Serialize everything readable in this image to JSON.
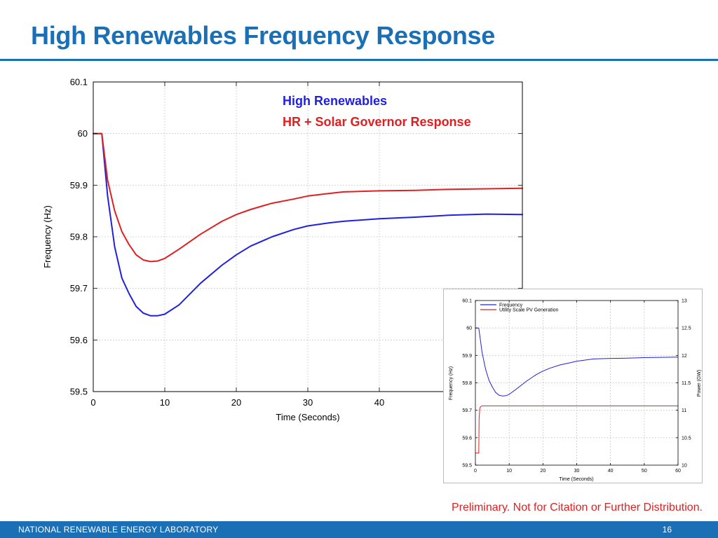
{
  "slide": {
    "title": "High Renewables Frequency Response",
    "disclaimer": "Preliminary.  Not for Citation or Further Distribution.",
    "footer_lab": "NATIONAL RENEWABLE ENERGY LABORATORY",
    "page_number": "16"
  },
  "colors": {
    "brand": "#1a6fb5",
    "series_blue": "#2020e0",
    "series_red": "#e02020",
    "grid": "#bbbbbb"
  },
  "chart_data": [
    {
      "type": "line",
      "title": "",
      "xlabel": "Time (Seconds)",
      "ylabel": "Frequency (Hz)",
      "xlim": [
        0,
        60
      ],
      "ylim": [
        59.5,
        60.1
      ],
      "xticks": [
        0,
        10,
        20,
        30,
        40
      ],
      "yticks": [
        59.5,
        59.6,
        59.7,
        59.8,
        59.9,
        60,
        60.1
      ],
      "ytick_labels": [
        "59.5",
        "59.6",
        "59.7",
        "59.8",
        "59.9",
        "60",
        "60.1"
      ],
      "grid": true,
      "legend_position": "top-right",
      "series": [
        {
          "name": "High Renewables",
          "color": "#2020e0",
          "x": [
            0,
            1.2,
            2,
            3,
            4,
            5,
            6,
            7,
            8,
            9,
            10,
            12,
            15,
            18,
            20,
            22,
            25,
            28,
            30,
            33,
            35,
            40,
            45,
            50,
            55,
            60
          ],
          "y": [
            60,
            60,
            59.88,
            59.78,
            59.72,
            59.69,
            59.665,
            59.652,
            59.647,
            59.647,
            59.65,
            59.668,
            59.71,
            59.745,
            59.765,
            59.782,
            59.8,
            59.814,
            59.821,
            59.827,
            59.83,
            59.835,
            59.838,
            59.842,
            59.844,
            59.843
          ]
        },
        {
          "name": "HR + Solar Governor Response",
          "color": "#e02020",
          "x": [
            0,
            1.2,
            2,
            3,
            4,
            5,
            6,
            7,
            8,
            9,
            10,
            12,
            15,
            18,
            20,
            22,
            25,
            28,
            30,
            33,
            35,
            40,
            45,
            50,
            55,
            60
          ],
          "y": [
            60,
            60,
            59.91,
            59.85,
            59.81,
            59.785,
            59.765,
            59.755,
            59.752,
            59.753,
            59.758,
            59.776,
            59.805,
            59.83,
            59.843,
            59.853,
            59.865,
            59.873,
            59.879,
            59.884,
            59.887,
            59.889,
            59.89,
            59.892,
            59.893,
            59.894
          ]
        }
      ]
    },
    {
      "type": "line",
      "title": "",
      "xlabel": "Time (Seconds)",
      "ylabel": "Frequency (Hz)",
      "y2label": "Power (GW)",
      "xlim": [
        0,
        60
      ],
      "ylim": [
        59.5,
        60.1
      ],
      "y2lim": [
        10,
        13
      ],
      "xticks": [
        0,
        10,
        20,
        30,
        40,
        50,
        60
      ],
      "yticks": [
        59.5,
        59.6,
        59.7,
        59.8,
        59.9,
        60,
        60.1
      ],
      "ytick_labels": [
        "59.5",
        "59.6",
        "59.7",
        "59.8",
        "59.9",
        "60",
        "60.1"
      ],
      "y2ticks": [
        10,
        10.5,
        11,
        11.5,
        12,
        12.5,
        13
      ],
      "y2tick_labels": [
        "10",
        "10.5",
        "11",
        "11.5",
        "12",
        "12.5",
        "13"
      ],
      "grid": true,
      "legend_position": "top-left",
      "series": [
        {
          "name": "Frequency",
          "color": "#2020e0",
          "axis": "left",
          "x": [
            0,
            1,
            2,
            3,
            4,
            5,
            6,
            7,
            8,
            9,
            10,
            12,
            15,
            18,
            20,
            22,
            25,
            28,
            30,
            35,
            40,
            45,
            50,
            55,
            60
          ],
          "y": [
            60,
            60,
            59.91,
            59.85,
            59.81,
            59.785,
            59.765,
            59.755,
            59.752,
            59.753,
            59.758,
            59.776,
            59.805,
            59.83,
            59.843,
            59.853,
            59.865,
            59.873,
            59.879,
            59.887,
            59.889,
            59.89,
            59.892,
            59.893,
            59.894
          ]
        },
        {
          "name": "Utility Scale PV Generation",
          "color": "#e02020",
          "axis": "right",
          "x": [
            0,
            1,
            1.1,
            1.3,
            1.6,
            2,
            5,
            10,
            20,
            30,
            40,
            50,
            60
          ],
          "y": [
            10.22,
            10.22,
            10.85,
            11.04,
            11.07,
            11.08,
            11.08,
            11.08,
            11.08,
            11.08,
            11.08,
            11.08,
            11.08
          ]
        }
      ]
    }
  ]
}
